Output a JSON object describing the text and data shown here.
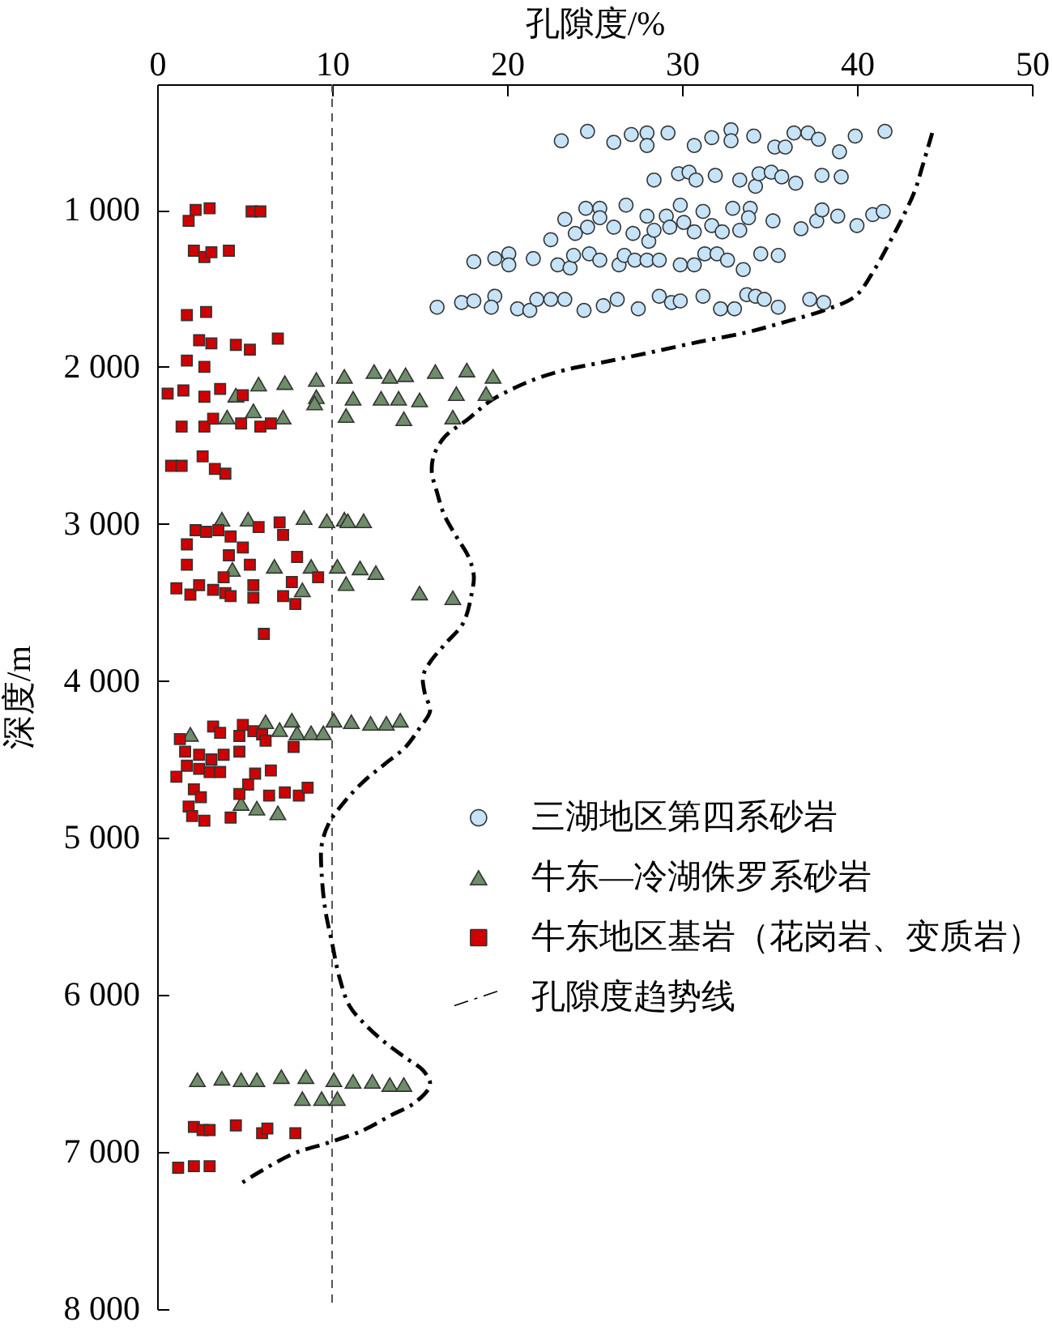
{
  "chart_data": {
    "type": "scatter",
    "xlabel": "孔隙度/%",
    "ylabel": "深度/m",
    "xlim": [
      0,
      50
    ],
    "xticks": [
      0,
      10,
      20,
      30,
      40,
      50
    ],
    "ylim": [
      8000,
      200
    ],
    "yticks": [
      {
        "value": 1000,
        "label": "1 000"
      },
      {
        "value": 2000,
        "label": "2 000"
      },
      {
        "value": 3000,
        "label": "3 000"
      },
      {
        "value": 4000,
        "label": "4 000"
      },
      {
        "value": 5000,
        "label": "5 000"
      },
      {
        "value": 6000,
        "label": "6 000"
      },
      {
        "value": 7000,
        "label": "7 000"
      },
      {
        "value": 8000,
        "label": "8 000"
      }
    ],
    "legend": "right",
    "ref_lines": [
      {
        "axis": "x",
        "value": 10,
        "color": "#555555",
        "line_style": "dashed"
      }
    ],
    "series": [
      {
        "name": "三湖地区第四系砂岩",
        "type": "scatter",
        "marker": "circle",
        "color": "#c6e3f8",
        "x": [
          23.1,
          24.6,
          26.1,
          27.1,
          28.0,
          28.0,
          29.2,
          30.7,
          31.7,
          32.8,
          32.8,
          34.1,
          35.3,
          35.9,
          36.4,
          37.2,
          37.8,
          39.0,
          39.9,
          41.6,
          28.4,
          29.8,
          30.4,
          30.8,
          31.9,
          33.3,
          34.2,
          34.4,
          35.1,
          35.7,
          36.5,
          38.0,
          39.1,
          23.3,
          24.5,
          25.3,
          25.3,
          24.6,
          23.9,
          26.1,
          26.8,
          27.2,
          28.0,
          28.1,
          29.1,
          28.4,
          29.3,
          29.9,
          30.1,
          30.7,
          31.2,
          31.7,
          32.3,
          32.9,
          33.3,
          33.9,
          33.8,
          35.2,
          36.8,
          37.7,
          38.0,
          38.9,
          40.0,
          40.9,
          41.5,
          22.5,
          18.1,
          19.3,
          20.1,
          20.1,
          21.5,
          22.9,
          23.6,
          23.8,
          24.7,
          25.3,
          26.4,
          26.7,
          27.3,
          28.0,
          28.7,
          29.9,
          30.7,
          31.3,
          32.0,
          32.6,
          33.5,
          34.5,
          35.5,
          16.0,
          17.4,
          18.1,
          19.3,
          19.1,
          20.6,
          21.3,
          21.7,
          22.5,
          23.3,
          24.4,
          25.5,
          26.3,
          27.5,
          28.7,
          29.4,
          29.9,
          31.2,
          32.2,
          33.0,
          33.7,
          34.2,
          34.7,
          35.5,
          37.3,
          38.1
        ],
        "values": [
          560,
          500,
          570,
          520,
          510,
          590,
          510,
          590,
          540,
          490,
          560,
          530,
          600,
          600,
          510,
          510,
          550,
          630,
          530,
          500,
          810,
          770,
          760,
          810,
          780,
          810,
          850,
          770,
          760,
          790,
          830,
          780,
          790,
          1060,
          990,
          990,
          1050,
          1110,
          1150,
          1110,
          970,
          1150,
          1040,
          1200,
          1040,
          1130,
          1110,
          970,
          1080,
          1140,
          1010,
          1100,
          1140,
          990,
          1130,
          990,
          1050,
          1070,
          1120,
          1070,
          1000,
          1040,
          1100,
          1030,
          1010,
          1190,
          1330,
          1310,
          1280,
          1350,
          1310,
          1350,
          1370,
          1290,
          1280,
          1320,
          1350,
          1290,
          1320,
          1320,
          1320,
          1350,
          1350,
          1280,
          1280,
          1320,
          1380,
          1280,
          1290,
          1620,
          1590,
          1580,
          1550,
          1620,
          1630,
          1640,
          1570,
          1570,
          1570,
          1640,
          1610,
          1570,
          1630,
          1550,
          1590,
          1580,
          1550,
          1630,
          1630,
          1540,
          1550,
          1570,
          1620,
          1570,
          1590
        ]
      },
      {
        "name": "牛东—冷湖侏罗系砂岩",
        "type": "scatter",
        "marker": "triangle",
        "color": "#6e8d69",
        "x": [
          5.8,
          7.3,
          9.1,
          10.7,
          12.4,
          13.3,
          14.2,
          15.9,
          17.7,
          19.2,
          4.5,
          9.1,
          9.0,
          11.2,
          12.8,
          13.8,
          15.0,
          17.1,
          18.8,
          4.0,
          5.5,
          7.2,
          10.8,
          14.1,
          16.9,
          3.7,
          5.2,
          8.4,
          9.7,
          10.7,
          10.9,
          11.8,
          4.3,
          6.7,
          8.8,
          10.3,
          11.6,
          12.5,
          8.3,
          10.8,
          15.0,
          16.9,
          1.9,
          6.2,
          7.0,
          7.7,
          8.0,
          8.8,
          9.5,
          10.1,
          11.1,
          12.2,
          13.1,
          13.9,
          4.8,
          5.7,
          6.9,
          2.3,
          3.7,
          4.8,
          5.7,
          7.1,
          8.5,
          10.1,
          11.2,
          12.3,
          13.3,
          14.1,
          8.3,
          9.4,
          10.3
        ],
        "values": [
          2110,
          2100,
          2080,
          2060,
          2030,
          2060,
          2050,
          2030,
          2020,
          2060,
          2180,
          2190,
          2230,
          2200,
          2200,
          2200,
          2210,
          2170,
          2170,
          2320,
          2280,
          2320,
          2310,
          2330,
          2320,
          2970,
          2970,
          2960,
          2980,
          2970,
          2980,
          2980,
          3290,
          3270,
          3270,
          3270,
          3280,
          3310,
          3420,
          3380,
          3440,
          3470,
          4340,
          4260,
          4310,
          4250,
          4330,
          4330,
          4330,
          4250,
          4260,
          4270,
          4270,
          4250,
          4780,
          4810,
          4840,
          6540,
          6530,
          6540,
          6540,
          6520,
          6520,
          6540,
          6550,
          6550,
          6570,
          6570,
          6660,
          6660,
          6660
        ]
      },
      {
        "name": "牛东地区基岩（花岗岩、变质岩）",
        "type": "scatter",
        "marker": "square",
        "color": "#d10000",
        "x": [
          1.8,
          2.2,
          3.0,
          5.4,
          5.9,
          2.1,
          2.7,
          3.1,
          4.1,
          1.7,
          2.8,
          2.4,
          3.1,
          4.5,
          5.3,
          6.9,
          1.7,
          2.7,
          0.6,
          1.5,
          2.7,
          3.6,
          4.9,
          1.4,
          2.7,
          3.2,
          4.8,
          5.9,
          6.5,
          0.8,
          1.4,
          2.6,
          3.3,
          3.9,
          7.0,
          5.8,
          2.2,
          2.8,
          3.5,
          4.2,
          7.2,
          1.7,
          4.9,
          4.1,
          8.0,
          1.7,
          5.3,
          3.8,
          7.7,
          9.2,
          1.1,
          1.9,
          2.4,
          3.2,
          3.9,
          4.2,
          5.5,
          5.5,
          7.2,
          7.9,
          6.1,
          1.3,
          3.2,
          3.6,
          4.9,
          4.7,
          5.5,
          6.0,
          6.2,
          1.6,
          2.4,
          3.1,
          3.8,
          4.7,
          7.8,
          1.7,
          2.4,
          3.0,
          3.6,
          6.5,
          1.1,
          5.6,
          5.2,
          2.1,
          2.5,
          4.7,
          6.4,
          7.3,
          8.1,
          8.6,
          1.8,
          2.0,
          2.7,
          4.2,
          2.1,
          2.6,
          3.0,
          4.5,
          6.0,
          6.3,
          7.9,
          1.2,
          2.1,
          3.0
        ],
        "values": [
          1070,
          1000,
          990,
          1010,
          1010,
          1260,
          1300,
          1270,
          1260,
          1670,
          1650,
          1830,
          1850,
          1860,
          1890,
          1820,
          1960,
          2000,
          2170,
          2150,
          2190,
          2140,
          2180,
          2380,
          2380,
          2330,
          2360,
          2380,
          2360,
          2630,
          2630,
          2570,
          2650,
          2680,
          2990,
          3020,
          3040,
          3050,
          3040,
          3080,
          3070,
          3130,
          3150,
          3200,
          3210,
          3260,
          3260,
          3340,
          3370,
          3340,
          3410,
          3450,
          3390,
          3420,
          3440,
          3460,
          3390,
          3470,
          3460,
          3510,
          3700,
          4370,
          4290,
          4330,
          4280,
          4350,
          4320,
          4340,
          4380,
          4450,
          4470,
          4500,
          4470,
          4450,
          4420,
          4540,
          4560,
          4580,
          4580,
          4570,
          4610,
          4590,
          4660,
          4690,
          4740,
          4720,
          4730,
          4710,
          4730,
          4680,
          4800,
          4860,
          4890,
          4870,
          6840,
          6860,
          6860,
          6830,
          6880,
          6850,
          6880,
          7100,
          7090,
          7090
        ]
      },
      {
        "name": "孔隙度趋势线",
        "type": "line",
        "color": "#000000",
        "line_style": "dashdot",
        "x": [
          44.3,
          43.8,
          43.3,
          42.6,
          41.9,
          41.0,
          39.9,
          38.1,
          36.0,
          33.7,
          31.0,
          28.1,
          25.5,
          23.3,
          21.8,
          20.5,
          19.0,
          17.8,
          16.4,
          15.8,
          15.7,
          16.0,
          16.4,
          17.1,
          17.8,
          18.1,
          18.0,
          17.5,
          16.5,
          15.6,
          15.2,
          15.3,
          15.6,
          15.0,
          14.2,
          13.0,
          11.8,
          10.7,
          9.8,
          9.4,
          9.4,
          9.6,
          10.0,
          10.4,
          11.0,
          12.0,
          13.0,
          14.2,
          15.2,
          15.6,
          14.8,
          13.3,
          11.8,
          9.8,
          7.8,
          5.8,
          4.8
        ],
        "values": [
          510,
          700,
          880,
          1050,
          1200,
          1380,
          1550,
          1640,
          1710,
          1780,
          1840,
          1910,
          1970,
          2020,
          2070,
          2130,
          2220,
          2330,
          2450,
          2570,
          2670,
          2800,
          2940,
          3080,
          3210,
          3330,
          3430,
          3630,
          3760,
          3880,
          3970,
          4080,
          4190,
          4300,
          4420,
          4530,
          4640,
          4770,
          4910,
          5050,
          5220,
          5450,
          5670,
          5880,
          6070,
          6200,
          6300,
          6400,
          6480,
          6570,
          6680,
          6770,
          6860,
          6940,
          7010,
          7130,
          7200
        ]
      }
    ]
  }
}
